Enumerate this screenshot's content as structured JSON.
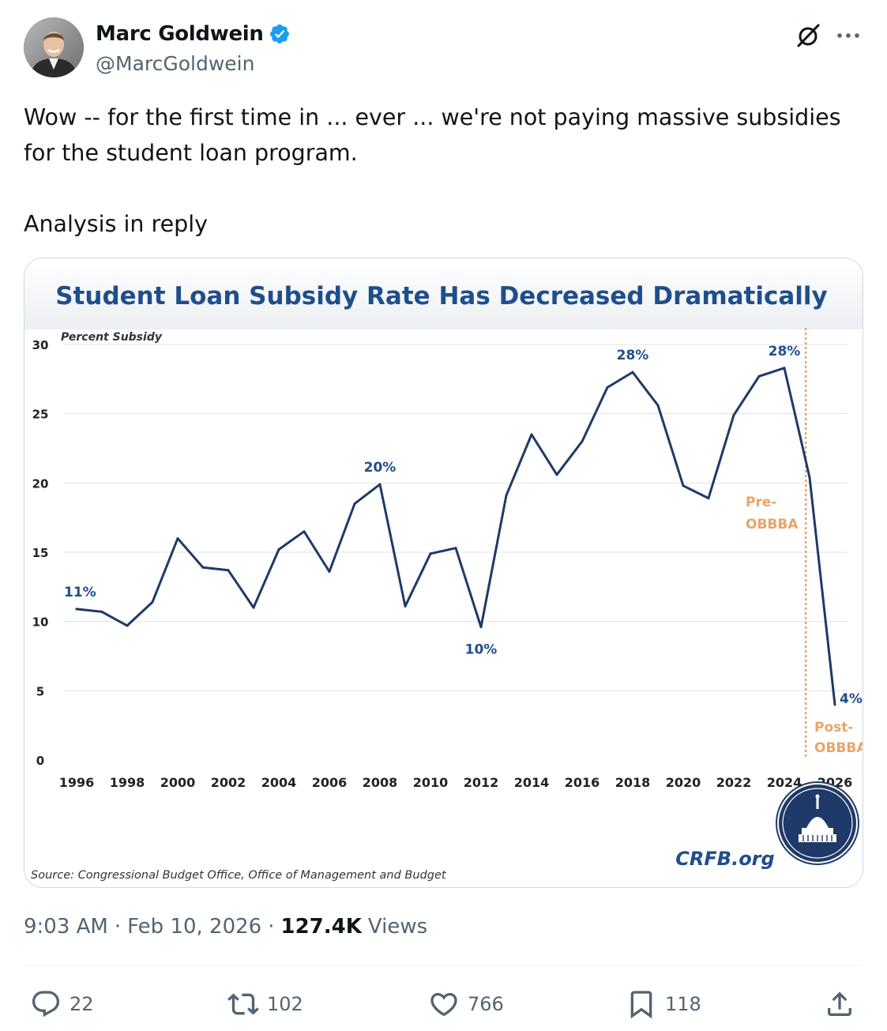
{
  "author": {
    "name": "Marc Goldwein",
    "handle": "@MarcGoldwein"
  },
  "tweet": {
    "line1": "Wow -- for the first time in ... ever ... we're not paying massive subsidies for the student loan program.",
    "line2": "Analysis in reply"
  },
  "meta": {
    "time": "9:03 AM",
    "date": "Feb 10, 2026",
    "views_count": "127.4K",
    "views_label": "Views"
  },
  "actions": {
    "replies": "22",
    "reposts": "102",
    "likes": "766",
    "bookmarks": "118"
  },
  "colors": {
    "line": "#1f3a68",
    "title": "#1f4e8c",
    "marker": "#e8a46a",
    "accent": "#1d9bf0"
  },
  "chart_data": {
    "type": "line",
    "title": "Student Loan Subsidy Rate Has Decreased Dramatically",
    "ylabel": "Percent Subsidy",
    "ylim": [
      0,
      30
    ],
    "yticks": [
      0,
      5,
      10,
      15,
      20,
      25,
      30
    ],
    "x_ticks": [
      "1996",
      "1998",
      "2000",
      "2002",
      "2004",
      "2006",
      "2008",
      "2010",
      "2012",
      "2014",
      "2016",
      "2018",
      "2020",
      "2022",
      "2024",
      "2026"
    ],
    "series": [
      {
        "name": "Subsidy rate",
        "x": [
          1996,
          1997,
          1998,
          1999,
          2000,
          2001,
          2002,
          2003,
          2004,
          2005,
          2006,
          2007,
          2008,
          2009,
          2010,
          2011,
          2012,
          2013,
          2014,
          2015,
          2016,
          2017,
          2018,
          2019,
          2020,
          2021,
          2022,
          2023,
          2024,
          2025,
          2026
        ],
        "values": [
          10.9,
          10.7,
          9.7,
          11.4,
          16.0,
          13.9,
          13.7,
          11.0,
          15.2,
          16.5,
          13.6,
          18.5,
          19.9,
          11.1,
          14.9,
          15.3,
          9.6,
          19.1,
          23.5,
          20.6,
          23.0,
          26.9,
          28.0,
          25.6,
          19.8,
          18.9,
          24.9,
          27.7,
          28.3,
          20.4,
          4.0
        ]
      }
    ],
    "annotations": [
      {
        "text": "11%",
        "x": 1996,
        "y": 10.9,
        "pos": "above"
      },
      {
        "text": "20%",
        "x": 2008,
        "y": 19.9,
        "pos": "above"
      },
      {
        "text": "10%",
        "x": 2012,
        "y": 9.6,
        "pos": "below"
      },
      {
        "text": "28%",
        "x": 2018,
        "y": 28.0,
        "pos": "above"
      },
      {
        "text": "28%",
        "x": 2024,
        "y": 28.3,
        "pos": "above"
      },
      {
        "text": "4%",
        "x": 2026,
        "y": 4.0,
        "pos": "right"
      }
    ],
    "divider": {
      "x": 2024.85,
      "label_left": [
        "Pre-",
        "OBBBA"
      ],
      "label_right": [
        "Post-",
        "OBBBA"
      ]
    },
    "source": "Source: Congressional Budget Office, Office of Management and Budget",
    "brand": "CRFB.org"
  }
}
